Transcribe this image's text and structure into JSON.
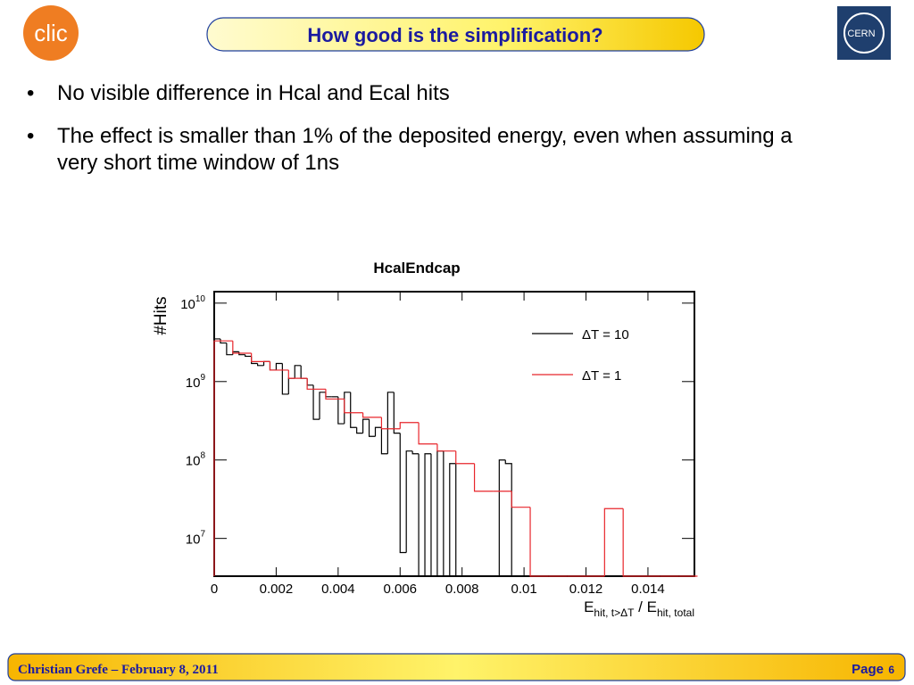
{
  "header": {
    "title": "How good is the simplification?",
    "logo_left": "clic",
    "logo_right": "CERN"
  },
  "bullets": [
    "No visible difference in Hcal and Ecal hits",
    "The effect is smaller than 1% of the deposited energy, even when assuming a very short time window of 1ns"
  ],
  "chart_data": {
    "type": "histogram",
    "title": "HcalEndcap",
    "y_label": "#Hits",
    "x_label": {
      "main": "E",
      "sub": "hit, t>ΔT",
      "mid": " / E",
      "sub2": "hit, total"
    },
    "log_y": true,
    "xlim": [
      0,
      0.0155
    ],
    "xticks": [
      0,
      0.002,
      0.004,
      0.006,
      0.008,
      0.01,
      0.012,
      0.014
    ],
    "ylim": [
      3300000,
      14000000000
    ],
    "yticks": [
      {
        "value": 10000000,
        "label": "10",
        "exponent": "7"
      },
      {
        "value": 100000000,
        "label": "10",
        "exponent": "8"
      },
      {
        "value": 1000000000,
        "label": "10",
        "exponent": "9"
      },
      {
        "value": 10000000000,
        "label": "10",
        "exponent": "10"
      }
    ],
    "legend_position": "upper right",
    "series": [
      {
        "name": "ΔT = 10",
        "color": "#000000",
        "bins": [
          0,
          0.0002,
          0.0004,
          0.0006,
          0.0008,
          0.001,
          0.0012,
          0.0014,
          0.0016,
          0.0018,
          0.002,
          0.0022,
          0.0024,
          0.0026,
          0.0028,
          0.003,
          0.0032,
          0.0034,
          0.0036,
          0.0038,
          0.004,
          0.0042,
          0.0044,
          0.0046,
          0.0048,
          0.005,
          0.0052,
          0.0054,
          0.0056,
          0.0058,
          0.006,
          0.0062,
          0.0064,
          0.0066,
          0.0068,
          0.007,
          0.0072,
          0.0074,
          0.0076,
          0.0078,
          0.008,
          0.0082,
          0.0084,
          0.0086,
          0.0088,
          0.009,
          0.0092,
          0.0094,
          0.0096
        ],
        "values": [
          3500000000,
          3100000000,
          2200000000,
          2400000000,
          2200000000,
          2100000000,
          1700000000,
          1600000000,
          1800000000,
          1400000000,
          1700000000,
          690000000,
          1100000000,
          1600000000,
          1100000000,
          900000000,
          330000000,
          730000000,
          640000000,
          640000000,
          290000000,
          730000000,
          260000000,
          220000000,
          330000000,
          200000000,
          260000000,
          120000000,
          730000000,
          220000000,
          6600000,
          130000000,
          120000000,
          0,
          120000000,
          0,
          130000000,
          0,
          90000000,
          0,
          0,
          0,
          0,
          0,
          0,
          0,
          100000000,
          90000000
        ]
      },
      {
        "name": "ΔT = 1",
        "color": "#e8262b",
        "bins": [
          0,
          0.0006,
          0.0012,
          0.0018,
          0.0024,
          0.003,
          0.0036,
          0.0042,
          0.0048,
          0.0054,
          0.006,
          0.0066,
          0.0072,
          0.0078,
          0.0084,
          0.009,
          0.0096,
          0.0102,
          0.0108,
          0.0114,
          0.012,
          0.0126,
          0.0132,
          0.0138,
          0.0144,
          0.015,
          0.0156
        ],
        "values": [
          3300000000,
          2300000000,
          1800000000,
          1400000000,
          1100000000,
          800000000,
          600000000,
          400000000,
          350000000,
          250000000,
          300000000,
          160000000,
          130000000,
          90000000,
          40000000,
          40000000,
          25000000,
          0,
          0,
          0,
          0,
          24000000,
          0,
          0,
          0,
          0
        ]
      }
    ]
  },
  "footer": {
    "author": "Christian Grefe –  February 8, 2011",
    "page_label": "Page",
    "page_number": "6"
  }
}
